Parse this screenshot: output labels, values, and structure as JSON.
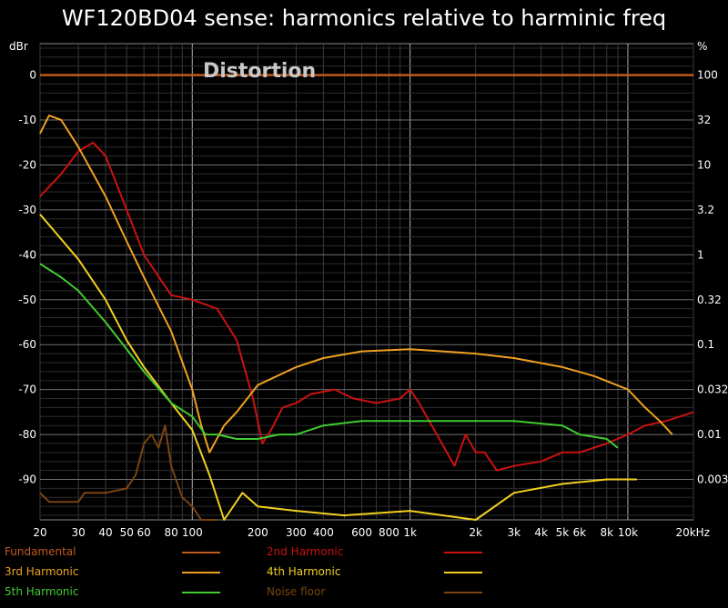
{
  "chart_data": {
    "type": "line",
    "title": "WF120BD04 sense: harmonics relative to harminic freq",
    "annotation": "Distortion",
    "ylabel_left": "dBr",
    "ylabel_right": "%",
    "x_scale": "log",
    "xlim": [
      20,
      20000
    ],
    "ylim": [
      -99,
      7
    ],
    "y_ticks": [
      0,
      -10,
      -20,
      -30,
      -40,
      -50,
      -60,
      -70,
      -80,
      -90
    ],
    "y_right_ticks": [
      "100",
      "32",
      "10",
      "3.2",
      "1",
      "0.32",
      "0.1",
      "0.032",
      "0.01",
      "0.0032"
    ],
    "x_ticks": [
      {
        "v": 20,
        "t": "20"
      },
      {
        "v": 30,
        "t": "30"
      },
      {
        "v": 40,
        "t": "40"
      },
      {
        "v": 50,
        "t": "50"
      },
      {
        "v": 60,
        "t": "60"
      },
      {
        "v": 80,
        "t": "80"
      },
      {
        "v": 100,
        "t": "100"
      },
      {
        "v": 200,
        "t": "200"
      },
      {
        "v": 300,
        "t": "300"
      },
      {
        "v": 400,
        "t": "400"
      },
      {
        "v": 600,
        "t": "600"
      },
      {
        "v": 800,
        "t": "800"
      },
      {
        "v": 1000,
        "t": "1k"
      },
      {
        "v": 2000,
        "t": "2k"
      },
      {
        "v": 3000,
        "t": "3k"
      },
      {
        "v": 4000,
        "t": "4k"
      },
      {
        "v": 5000,
        "t": "5k"
      },
      {
        "v": 6000,
        "t": "6k"
      },
      {
        "v": 8000,
        "t": "8k"
      },
      {
        "v": 10000,
        "t": "10k"
      },
      {
        "v": 20000,
        "t": "20kHz"
      }
    ],
    "grid": true,
    "legend_position": "bottom",
    "series": [
      {
        "name": "Fundamental",
        "color": "#c05a1e",
        "x": [
          20,
          20000
        ],
        "y": [
          0,
          0
        ]
      },
      {
        "name": "2nd Harmonic",
        "color": "#cc1111",
        "x": [
          20,
          25,
          30,
          35,
          40,
          50,
          60,
          80,
          100,
          130,
          160,
          190,
          210,
          230,
          260,
          300,
          350,
          450,
          550,
          700,
          900,
          1000,
          1100,
          1400,
          1600,
          1800,
          2000,
          2200,
          2500,
          3000,
          4000,
          5000,
          6000,
          8000,
          10000,
          12000,
          15000,
          20000
        ],
        "y": [
          -27,
          -22,
          -17,
          -15,
          -18,
          -30,
          -40,
          -49,
          -50,
          -52,
          -59,
          -72,
          -82,
          -79,
          -74,
          -73,
          -71,
          -70,
          -72,
          -73,
          -72,
          -70,
          -73,
          -82,
          -87,
          -80,
          -84,
          -84,
          -88,
          -87,
          -86,
          -84,
          -84,
          -82,
          -80,
          -78,
          -77,
          -75
        ]
      },
      {
        "name": "3rd Harmonic",
        "color": "#f0a020",
        "x": [
          20,
          22,
          25,
          30,
          40,
          50,
          60,
          80,
          100,
          110,
          120,
          140,
          160,
          200,
          300,
          400,
          600,
          1000,
          2000,
          3000,
          5000,
          7000,
          10000,
          12000,
          14000,
          16000
        ],
        "y": [
          -13,
          -9,
          -10,
          -16,
          -27,
          -37,
          -45,
          -57,
          -70,
          -78,
          -84,
          -78,
          -75,
          -69,
          -65,
          -63,
          -61.5,
          -61,
          -62,
          -63,
          -65,
          -67,
          -70,
          -74,
          -77,
          -80
        ]
      },
      {
        "name": "4th Harmonic",
        "color": "#f0d020",
        "x": [
          20,
          30,
          40,
          50,
          60,
          80,
          100,
          120,
          140,
          170,
          200,
          300,
          500,
          1000,
          2000,
          3000,
          5000,
          8000,
          10000,
          11000
        ],
        "y": [
          -31,
          -41,
          -50,
          -59,
          -65,
          -73,
          -79,
          -89,
          -99,
          -93,
          -96,
          -97,
          -98,
          -97,
          -99,
          -93,
          -91,
          -90,
          -90,
          -90
        ]
      },
      {
        "name": "5th Harmonic",
        "color": "#40cc30",
        "x": [
          20,
          25,
          30,
          40,
          50,
          60,
          80,
          100,
          115,
          130,
          160,
          200,
          250,
          300,
          400,
          600,
          1000,
          2000,
          3000,
          5000,
          6000,
          8000,
          9000
        ],
        "y": [
          -42,
          -45,
          -48,
          -55,
          -61,
          -66,
          -73,
          -76,
          -80,
          -80,
          -81,
          -81,
          -80,
          -80,
          -78,
          -77,
          -77,
          -77,
          -77,
          -78,
          -80,
          -81,
          -83
        ]
      },
      {
        "name": "Noise floor",
        "color": "#7a4410",
        "x": [
          20,
          22,
          30,
          32,
          40,
          50,
          55,
          60,
          65,
          70,
          75,
          80,
          90,
          100,
          110,
          130
        ],
        "y": [
          -93,
          -95,
          -95,
          -93,
          -93,
          -92,
          -89,
          -82,
          -80,
          -83,
          -78,
          -87,
          -94,
          -96,
          -99,
          -99
        ]
      }
    ]
  }
}
